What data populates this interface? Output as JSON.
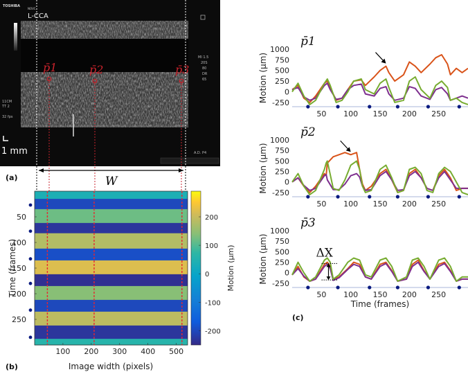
{
  "ultrasound": {
    "brand": "TOSHIBA",
    "brand_sub": "NOVC",
    "vessel_label": "L-CCA",
    "scale_text": "1 mm",
    "side_labels": [
      "MI 1.5",
      "20S",
      "80",
      "DR",
      "65"
    ],
    "left_labels": [
      "11CM",
      "TT 2",
      "32 fps"
    ],
    "bottom_right": "A.D. P4",
    "markers": [
      "p̄1",
      "p̄2",
      "p̄3"
    ]
  },
  "panel_labels": [
    "(a)",
    "(b)",
    "(c)"
  ],
  "width_label": "W",
  "chart_data": [
    {
      "type": "heatmap",
      "xlabel": "Image width (pixels)",
      "ylabel": "Time (frames)",
      "colorbar_label": "Motion (µm)",
      "x_ticks": [
        "100",
        "200",
        "300",
        "400",
        "500"
      ],
      "y_ticks": [
        "50",
        "100",
        "150",
        "200",
        "250"
      ],
      "colorbar_ticks": [
        "200",
        "100",
        "0",
        "-100",
        "-200"
      ],
      "xlim": [
        0,
        540
      ],
      "ylim": [
        0,
        300
      ],
      "clim": [
        -250,
        290
      ],
      "marker_columns": [
        45,
        210,
        520
      ],
      "cycle_frames": [
        27,
        78,
        132,
        180,
        232,
        285
      ],
      "bands": [
        {
          "t0": 0,
          "t1": 15,
          "v": 40
        },
        {
          "t0": 15,
          "t1": 35,
          "v": -200
        },
        {
          "t0": 35,
          "t1": 62,
          "v": 120
        },
        {
          "t0": 62,
          "t1": 82,
          "v": -230
        },
        {
          "t0": 82,
          "t1": 112,
          "v": 180
        },
        {
          "t0": 112,
          "t1": 135,
          "v": -190
        },
        {
          "t0": 135,
          "t1": 162,
          "v": 220
        },
        {
          "t0": 162,
          "t1": 185,
          "v": -240
        },
        {
          "t0": 185,
          "t1": 212,
          "v": 140
        },
        {
          "t0": 212,
          "t1": 235,
          "v": -200
        },
        {
          "t0": 235,
          "t1": 262,
          "v": 190
        },
        {
          "t0": 262,
          "t1": 288,
          "v": -230
        },
        {
          "t0": 288,
          "t1": 300,
          "v": 60
        }
      ]
    },
    {
      "type": "line",
      "title": "p̄1",
      "ylabel": "Motion (µm)",
      "y_ticks": [
        "1000",
        "750",
        "500",
        "250",
        "0",
        "-250"
      ],
      "x_ticks": [
        "50",
        "100",
        "150",
        "200",
        "250"
      ],
      "ylim": [
        -350,
        1000
      ],
      "xlim": [
        0,
        300
      ],
      "cycle_frames": [
        27,
        78,
        132,
        180,
        232,
        285
      ],
      "series": [
        {
          "color": "#d95319",
          "x": [
            0,
            10,
            20,
            30,
            40,
            55,
            60,
            65,
            75,
            85,
            95,
            105,
            118,
            125,
            140,
            150,
            160,
            165,
            175,
            190,
            200,
            210,
            220,
            235,
            245,
            255,
            265,
            270,
            280,
            290,
            300
          ],
          "y": [
            50,
            150,
            -150,
            -250,
            -100,
            200,
            250,
            100,
            -200,
            -150,
            50,
            250,
            280,
            150,
            350,
            500,
            600,
            450,
            250,
            400,
            700,
            600,
            450,
            650,
            800,
            870,
            650,
            400,
            550,
            450,
            550
          ]
        },
        {
          "color": "#7e2f8e",
          "x": [
            0,
            10,
            20,
            30,
            40,
            55,
            60,
            65,
            75,
            85,
            95,
            105,
            118,
            125,
            140,
            150,
            160,
            165,
            175,
            190,
            200,
            210,
            220,
            235,
            245,
            255,
            265,
            270,
            280,
            290,
            300
          ],
          "y": [
            50,
            100,
            -120,
            -200,
            -150,
            150,
            200,
            50,
            -180,
            -150,
            50,
            150,
            180,
            -50,
            -100,
            80,
            120,
            -50,
            -200,
            -150,
            120,
            80,
            -100,
            -180,
            50,
            100,
            -50,
            -200,
            -150,
            -100,
            -150
          ]
        },
        {
          "color": "#77ac30",
          "x": [
            0,
            10,
            20,
            30,
            40,
            55,
            60,
            65,
            75,
            85,
            95,
            105,
            118,
            125,
            140,
            150,
            160,
            165,
            175,
            190,
            200,
            210,
            220,
            235,
            245,
            255,
            265,
            270,
            280,
            290,
            300
          ],
          "y": [
            0,
            200,
            -100,
            -300,
            -200,
            200,
            300,
            150,
            -250,
            -200,
            0,
            250,
            300,
            50,
            -50,
            200,
            300,
            100,
            -250,
            -200,
            250,
            350,
            50,
            -150,
            150,
            250,
            100,
            -200,
            -150,
            -250,
            -300
          ]
        }
      ],
      "arrow_frame": 160
    },
    {
      "type": "line",
      "title": "p̄2",
      "ylabel": "Motion (µm)",
      "y_ticks": [
        "1000",
        "750",
        "500",
        "250",
        "0",
        "-250"
      ],
      "x_ticks": [
        "50",
        "100",
        "150",
        "200",
        "250"
      ],
      "ylim": [
        -350,
        1000
      ],
      "xlim": [
        0,
        300
      ],
      "cycle_frames": [
        27,
        78,
        132,
        180,
        232,
        285
      ],
      "series": [
        {
          "color": "#d95319",
          "x": [
            0,
            10,
            20,
            30,
            40,
            55,
            58,
            60,
            70,
            80,
            90,
            100,
            110,
            115,
            120,
            125,
            135,
            150,
            160,
            170,
            180,
            190,
            200,
            210,
            220,
            230,
            240,
            250,
            260,
            270,
            280,
            290,
            300
          ],
          "y": [
            0,
            100,
            -100,
            -250,
            -100,
            200,
            150,
            450,
            600,
            650,
            700,
            650,
            700,
            300,
            -50,
            -200,
            -100,
            200,
            300,
            50,
            -250,
            -200,
            200,
            300,
            100,
            -150,
            -200,
            150,
            300,
            100,
            -200,
            -150,
            -150
          ]
        },
        {
          "color": "#7e2f8e",
          "x": [
            0,
            10,
            20,
            30,
            40,
            55,
            58,
            60,
            70,
            80,
            90,
            100,
            110,
            115,
            120,
            125,
            135,
            150,
            160,
            170,
            180,
            190,
            200,
            210,
            220,
            230,
            240,
            250,
            260,
            270,
            280,
            290,
            300
          ],
          "y": [
            0,
            100,
            -80,
            -200,
            -150,
            150,
            180,
            50,
            -180,
            -180,
            -50,
            150,
            200,
            120,
            -100,
            -200,
            -180,
            150,
            250,
            50,
            -200,
            -180,
            150,
            250,
            100,
            -150,
            -200,
            100,
            250,
            50,
            -150,
            -150,
            -150
          ]
        },
        {
          "color": "#77ac30",
          "x": [
            0,
            10,
            20,
            30,
            40,
            55,
            58,
            60,
            70,
            80,
            90,
            100,
            110,
            115,
            120,
            125,
            135,
            150,
            160,
            170,
            180,
            190,
            200,
            210,
            220,
            230,
            240,
            250,
            260,
            270,
            280,
            290,
            300
          ],
          "y": [
            0,
            200,
            -100,
            -300,
            -200,
            300,
            450,
            500,
            -150,
            -200,
            50,
            400,
            500,
            300,
            -100,
            -250,
            -200,
            300,
            400,
            100,
            -250,
            -200,
            300,
            350,
            200,
            -200,
            -250,
            200,
            350,
            250,
            0,
            -250,
            -300
          ]
        }
      ],
      "arrow_frame": 100
    },
    {
      "type": "line",
      "title": "p̄3",
      "ylabel": "Motion (µm)",
      "xlabel": "Time (frames)",
      "y_ticks": [
        "1000",
        "750",
        "500",
        "250",
        "0",
        "-250"
      ],
      "x_ticks": [
        "50",
        "100",
        "150",
        "200",
        "250"
      ],
      "ylim": [
        -350,
        1000
      ],
      "xlim": [
        0,
        300
      ],
      "cycle_frames": [
        27,
        78,
        132,
        180,
        232,
        285
      ],
      "annotation": "ΔX",
      "series": [
        {
          "color": "#d95319",
          "x": [
            0,
            10,
            20,
            30,
            40,
            55,
            60,
            65,
            70,
            80,
            95,
            105,
            115,
            125,
            135,
            150,
            160,
            170,
            180,
            195,
            205,
            215,
            225,
            235,
            250,
            260,
            270,
            280,
            290,
            300
          ],
          "y": [
            -50,
            150,
            -100,
            -200,
            -150,
            200,
            250,
            150,
            -150,
            -100,
            100,
            250,
            200,
            -100,
            -150,
            200,
            250,
            50,
            -200,
            -150,
            200,
            300,
            50,
            -150,
            200,
            250,
            50,
            -200,
            -150,
            -150
          ]
        },
        {
          "color": "#7e2f8e",
          "x": [
            0,
            10,
            20,
            30,
            40,
            55,
            60,
            65,
            70,
            80,
            95,
            105,
            115,
            125,
            135,
            150,
            160,
            170,
            180,
            195,
            205,
            215,
            225,
            235,
            250,
            260,
            270,
            280,
            290,
            300
          ],
          "y": [
            -50,
            100,
            -80,
            -200,
            -150,
            150,
            200,
            100,
            -180,
            -120,
            80,
            200,
            150,
            -100,
            -150,
            150,
            220,
            30,
            -200,
            -150,
            150,
            250,
            30,
            -150,
            150,
            220,
            30,
            -200,
            -150,
            -150
          ]
        },
        {
          "color": "#77ac30",
          "x": [
            0,
            10,
            20,
            30,
            40,
            55,
            60,
            65,
            70,
            80,
            95,
            105,
            115,
            125,
            135,
            150,
            160,
            170,
            180,
            195,
            205,
            215,
            225,
            235,
            250,
            260,
            270,
            280,
            290,
            300
          ],
          "y": [
            -50,
            250,
            0,
            -200,
            -100,
            300,
            350,
            250,
            -150,
            -50,
            250,
            350,
            300,
            -50,
            -100,
            300,
            350,
            150,
            -200,
            -100,
            300,
            350,
            150,
            -150,
            300,
            350,
            150,
            -200,
            -100,
            -100
          ]
        }
      ]
    }
  ]
}
